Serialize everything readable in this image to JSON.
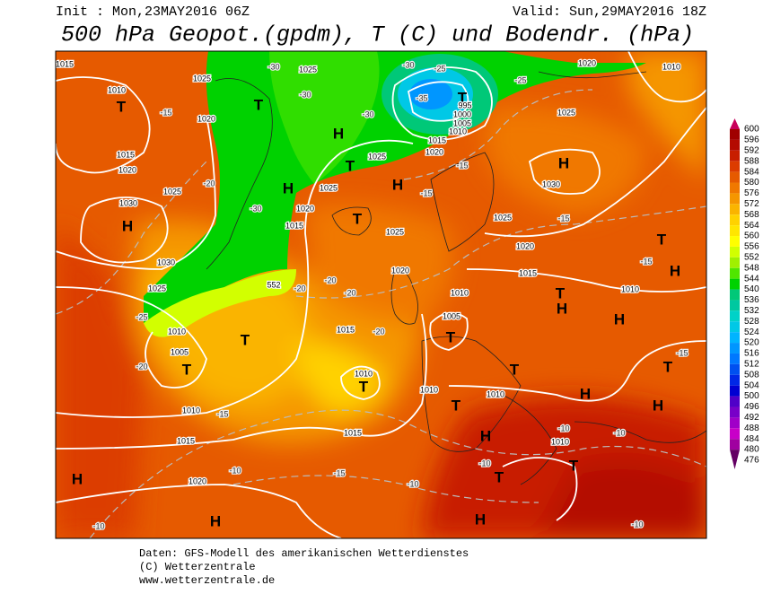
{
  "header": {
    "init": "Init : Mon,23MAY2016 06Z",
    "valid": "Valid: Sun,29MAY2016 18Z",
    "title": "500 hPa Geopot.(gpdm), T (C) und Bodendr. (hPa)"
  },
  "colorbar": {
    "values": [
      600,
      596,
      592,
      588,
      584,
      580,
      576,
      572,
      568,
      564,
      560,
      556,
      552,
      548,
      544,
      540,
      536,
      532,
      528,
      524,
      520,
      516,
      512,
      508,
      504,
      500,
      496,
      492,
      488,
      484,
      480,
      476
    ],
    "colors": [
      "#c8005a",
      "#a00000",
      "#b40a00",
      "#c81e00",
      "#dc3c00",
      "#e65a00",
      "#f07800",
      "#f59600",
      "#fab400",
      "#ffd200",
      "#ffe600",
      "#ffff00",
      "#d2ff00",
      "#a0f000",
      "#50e600",
      "#00d200",
      "#00c878",
      "#00c8a0",
      "#00d2c8",
      "#00c8e6",
      "#00b4ff",
      "#0096ff",
      "#0078ff",
      "#0050f0",
      "#0028e6",
      "#0000d2",
      "#5000c8",
      "#7800c8",
      "#a000c8",
      "#c800c8",
      "#a000a0",
      "#640064"
    ]
  },
  "map": {
    "centers": [
      "T",
      "H",
      "T",
      "H",
      "H",
      "T",
      "H",
      "T",
      "T",
      "T",
      "T",
      "T",
      "T",
      "H",
      "T",
      "H",
      "T",
      "H",
      "H",
      "T",
      "T",
      "H",
      "H",
      "T",
      "H",
      "T",
      "T",
      "H",
      "H",
      "H"
    ],
    "pressure_labels": [
      "1015",
      "1010",
      "1025",
      "1020",
      "1015",
      "1020",
      "1025",
      "1030",
      "1030",
      "1025",
      "1010",
      "1005",
      "1010",
      "1015",
      "1020",
      "1025",
      "1020",
      "1015",
      "1025",
      "1025",
      "1025",
      "1020",
      "1015",
      "1010",
      "1010",
      "1015",
      "1010",
      "1005",
      "1010",
      "1015",
      "1020",
      "1025",
      "1030",
      "1025",
      "1020",
      "1010",
      "1010",
      "1010",
      "995",
      "1000",
      "1005",
      "1010",
      "1015",
      "1020",
      "552"
    ],
    "temperature_labels": [
      "-15",
      "-20",
      "-30",
      "-25",
      "-20",
      "-15",
      "-10",
      "-15",
      "-20",
      "-20",
      "-20",
      "-15",
      "-15",
      "-15",
      "-15",
      "-15",
      "-10",
      "-10",
      "-10",
      "-10",
      "-10",
      "-10",
      "-30",
      "-30",
      "-30",
      "-30",
      "-35",
      "-25",
      "-25",
      "-20"
    ]
  },
  "footer": {
    "line1": "Daten: GFS-Modell des amerikanischen Wetterdienstes",
    "line2": "(C) Wetterzentrale",
    "line3": "www.wetterzentrale.de"
  }
}
